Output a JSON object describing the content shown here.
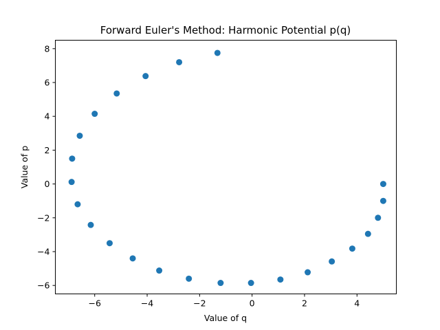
{
  "chart_data": {
    "type": "scatter",
    "title": "Forward Euler's Method: Harmonic Potential p(q)",
    "xlabel": "Value of q",
    "ylabel": "Value of p",
    "xlim": [
      -7.5,
      5.5
    ],
    "ylim": [
      -6.5,
      8.5
    ],
    "xticks": [
      -6,
      -4,
      -2,
      0,
      2,
      4
    ],
    "xtick_labels": [
      "−6",
      "−4",
      "−2",
      "0",
      "2",
      "4"
    ],
    "yticks": [
      -6,
      -4,
      -2,
      0,
      2,
      4,
      6,
      8
    ],
    "ytick_labels": [
      "−6",
      "−4",
      "−2",
      "0",
      "2",
      "4",
      "6",
      "8"
    ],
    "grid": false,
    "marker_color": "#1f77b4",
    "series": [
      {
        "x": [
          5.0,
          5.0,
          4.8,
          4.42,
          3.82,
          3.04,
          2.12,
          1.08,
          -0.04,
          -1.2,
          -2.41,
          -3.54,
          -4.55,
          -5.43,
          -6.15,
          -6.65,
          -6.88,
          -6.86,
          -6.57,
          -6.0,
          -5.16,
          -4.06,
          -2.78,
          -1.32
        ],
        "y": [
          0.0,
          -1.0,
          -2.0,
          -2.95,
          -3.82,
          -4.58,
          -5.22,
          -5.65,
          -5.85,
          -5.85,
          -5.6,
          -5.12,
          -4.4,
          -3.5,
          -2.42,
          -1.2,
          0.12,
          1.5,
          2.85,
          4.15,
          5.35,
          6.38,
          7.2,
          7.75
        ]
      }
    ]
  }
}
